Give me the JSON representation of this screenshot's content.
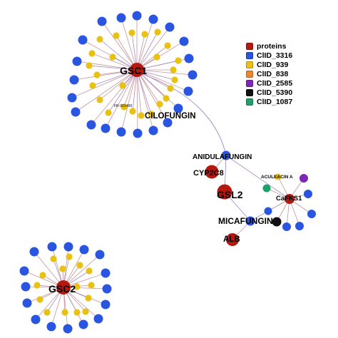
{
  "colors": {
    "proteins": "#b5180f",
    "clid_3316": "#2a55e0",
    "clid_939": "#e8c113",
    "clid_838": "#ec8731",
    "clid_2585": "#7e27b6",
    "clid_5390": "#111111",
    "clid_1087": "#1fa06a",
    "edge_a": "#c4969a",
    "edge_b": "#a589c6"
  },
  "legend": [
    {
      "label": "proteins",
      "color": "#b5180f"
    },
    {
      "label": "ClID_3316",
      "color": "#2a55e0"
    },
    {
      "label": "ClID_939",
      "color": "#e8c113"
    },
    {
      "label": "ClID_838",
      "color": "#ec8731"
    },
    {
      "label": "ClID_2585",
      "color": "#7e27b6"
    },
    {
      "label": "ClID_5390",
      "color": "#111111"
    },
    {
      "label": "ClID_1087",
      "color": "#1fa06a"
    }
  ],
  "labels": {
    "gsc1": "GSC1",
    "gsc2": "GSC2",
    "gsl2": "GSL2",
    "cafks1": "CaFKS1",
    "cyp2c8": "CYP2C8",
    "alb": "ALB",
    "cilofungin": "CILOFUNGIN",
    "anidulafungin": "ANIDULAFUNGIN",
    "micafungin": "MICAFUNGIN",
    "aculeacin": "ACULEACIN A",
    "fr": "FR-901469"
  }
}
